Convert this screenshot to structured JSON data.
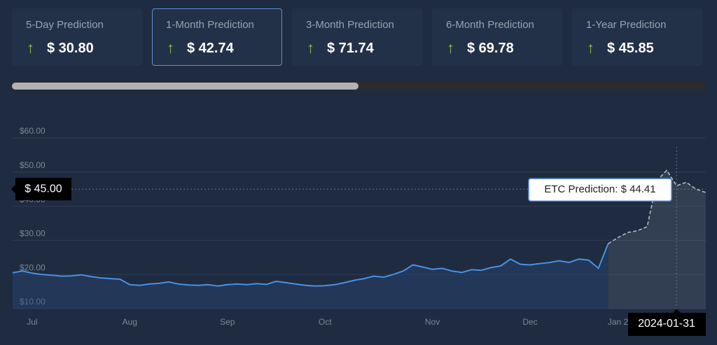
{
  "cards": [
    {
      "label": "5-Day Prediction",
      "value": "$ 30.80"
    },
    {
      "label": "1-Month Prediction",
      "value": "$ 42.74"
    },
    {
      "label": "3-Month Prediction",
      "value": "$ 71.74"
    },
    {
      "label": "6-Month Prediction",
      "value": "$ 69.78"
    },
    {
      "label": "1-Year Prediction",
      "value": "$ 45.85"
    }
  ],
  "selected_card": 1,
  "chart_data": {
    "type": "line",
    "categories": [
      null,
      null,
      "Jul",
      null,
      null,
      null,
      null,
      null,
      null,
      null,
      null,
      null,
      "Aug",
      null,
      null,
      null,
      null,
      null,
      null,
      null,
      null,
      null,
      "Sep",
      null,
      null,
      null,
      null,
      null,
      null,
      null,
      null,
      null,
      "Oct",
      null,
      null,
      null,
      null,
      null,
      null,
      null,
      null,
      null,
      null,
      "Nov",
      null,
      null,
      null,
      null,
      null,
      null,
      null,
      null,
      null,
      "Dec",
      null,
      null,
      null,
      null,
      null,
      null,
      null,
      null,
      "Jan 2",
      null,
      null,
      null,
      null,
      null,
      null,
      null,
      null,
      null
    ],
    "series": [
      {
        "color": "#4a90e2",
        "dashed": false,
        "values": [
          20.5,
          21.0,
          20.4,
          20.0,
          19.8,
          19.5,
          19.6,
          19.9,
          19.4,
          19.0,
          18.8,
          18.6,
          17.0,
          16.8,
          17.2,
          17.4,
          17.8,
          17.2,
          16.9,
          16.8,
          17.0,
          16.6,
          17.0,
          17.2,
          17.0,
          17.3,
          17.1,
          18.0,
          17.6,
          17.2,
          16.8,
          16.6,
          16.7,
          17.0,
          17.6,
          18.3,
          18.8,
          19.5,
          19.2,
          20.0,
          21.0,
          22.8,
          22.2,
          21.5,
          21.8,
          21.0,
          20.6,
          21.4,
          21.2,
          22.0,
          22.5,
          24.5,
          23.0,
          22.8,
          23.2,
          23.5,
          24.0,
          23.5,
          24.5,
          24.2,
          21.8,
          29.0,
          null,
          null,
          null,
          null,
          null,
          null,
          null,
          null,
          null,
          null
        ]
      },
      {
        "color": "#b4b9c2",
        "dashed": true,
        "values": [
          null,
          null,
          null,
          null,
          null,
          null,
          null,
          null,
          null,
          null,
          null,
          null,
          null,
          null,
          null,
          null,
          null,
          null,
          null,
          null,
          null,
          null,
          null,
          null,
          null,
          null,
          null,
          null,
          null,
          null,
          null,
          null,
          null,
          null,
          null,
          null,
          null,
          null,
          null,
          null,
          null,
          null,
          null,
          null,
          null,
          null,
          null,
          null,
          null,
          null,
          null,
          null,
          null,
          null,
          null,
          null,
          null,
          null,
          null,
          null,
          null,
          29.0,
          30.8,
          32.3,
          32.8,
          34.0,
          47.5,
          50.5,
          46.0,
          47.0,
          45.0,
          44.0
        ]
      }
    ],
    "ylim": [
      10,
      64
    ],
    "yticks": [
      {
        "value": 10,
        "label": "$10.00"
      },
      {
        "value": 20,
        "label": "$20.00"
      },
      {
        "value": 30,
        "label": "$30.00"
      },
      {
        "value": 40,
        "label": "$40.00"
      },
      {
        "value": 50,
        "label": "$50.00"
      },
      {
        "value": 60,
        "label": "$60.00"
      }
    ],
    "grid": true,
    "crosshair_y": {
      "value": 45,
      "label": "$ 45.00"
    },
    "crosshair_x_label": "2024-01-31",
    "tooltip": "ETC Prediction: $ 44.41"
  }
}
